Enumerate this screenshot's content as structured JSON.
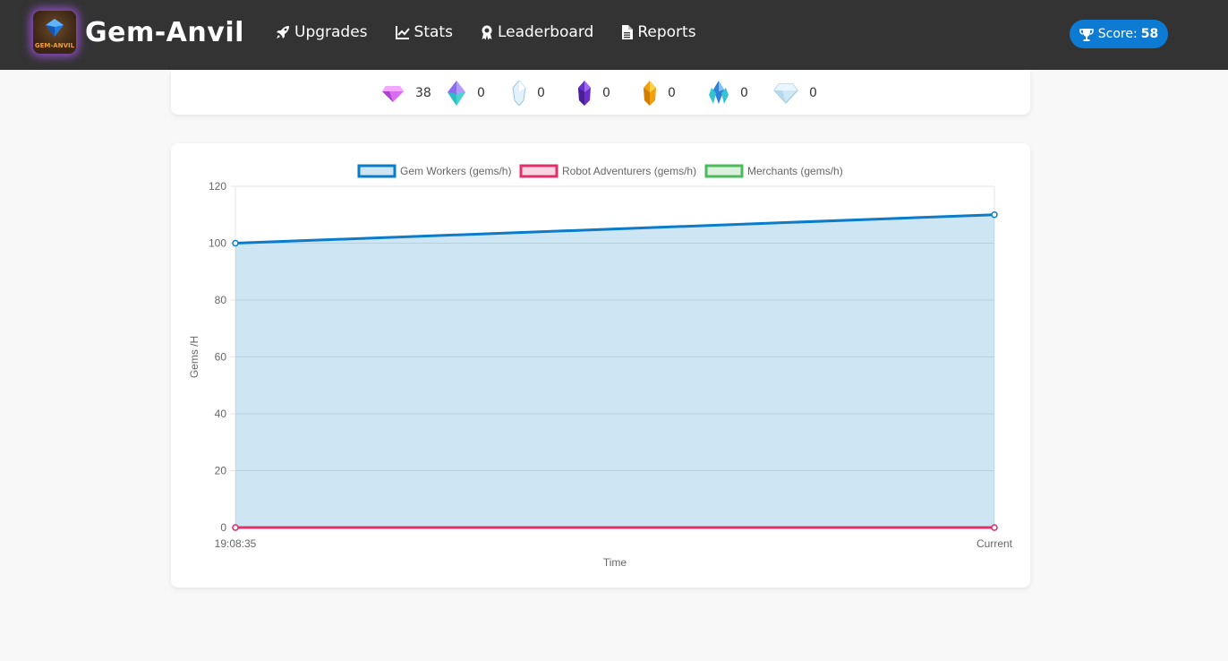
{
  "app": {
    "name": "Gem-Anvil",
    "logo_text": "GEM-ANVIL"
  },
  "nav": {
    "items": [
      {
        "label": "Upgrades",
        "icon": "rocket-icon"
      },
      {
        "label": "Stats",
        "icon": "chart-line-icon"
      },
      {
        "label": "Leaderboard",
        "icon": "award-icon"
      },
      {
        "label": "Reports",
        "icon": "file-icon"
      }
    ]
  },
  "score": {
    "label": "Score:",
    "value": "58",
    "icon": "trophy-icon"
  },
  "gems": [
    {
      "icon": "pink-gem-icon",
      "count": "38"
    },
    {
      "icon": "teal-purple-crystal-icon",
      "count": "0"
    },
    {
      "icon": "clear-crystal-icon",
      "count": "0"
    },
    {
      "icon": "amethyst-crystal-icon",
      "count": "0"
    },
    {
      "icon": "gold-crystal-icon",
      "count": "0"
    },
    {
      "icon": "blue-crystal-cluster-icon",
      "count": "0"
    },
    {
      "icon": "diamond-icon",
      "count": "0"
    }
  ],
  "colors": {
    "navbar": "#333333",
    "score_badge": "#0d7bd4",
    "gem_workers": "#0a7cc9",
    "robot_adventurers": "#e0306a",
    "merchants": "#4cbb5c"
  },
  "chart_data": {
    "type": "line",
    "x": [
      "19:08:35",
      "Current"
    ],
    "series": [
      {
        "name": "Gem Workers (gems/h)",
        "values": [
          100,
          110
        ],
        "color": "#0a7cc9",
        "fill": true
      },
      {
        "name": "Robot Adventurers (gems/h)",
        "values": [
          0,
          0
        ],
        "color": "#e0306a",
        "fill": false
      },
      {
        "name": "Merchants (gems/h)",
        "values": [
          0,
          0
        ],
        "color": "#4cbb5c",
        "fill": false
      }
    ],
    "xlabel": "Time",
    "ylabel": "Gems /H",
    "ylim": [
      0,
      120
    ],
    "yticks": [
      0,
      20,
      40,
      60,
      80,
      100,
      120
    ],
    "grid": true,
    "legend_position": "top"
  }
}
